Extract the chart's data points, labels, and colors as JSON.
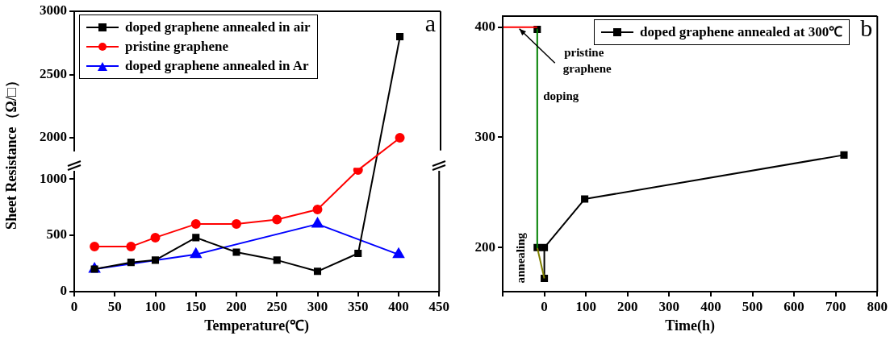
{
  "chart_data": [
    {
      "type": "line",
      "annotations": [
        "a"
      ],
      "xlim": [
        0,
        450
      ],
      "xticks": [
        0,
        50,
        100,
        150,
        200,
        250,
        300,
        350,
        400,
        450
      ],
      "ylim": [
        1900,
        3000
      ],
      "yticks": [
        2000,
        2500,
        3000
      ],
      "tick_labels": "y",
      "grid": false,
      "legend": "top left",
      "series": [
        {
          "name": "doped graphene annealed in air",
          "color": "#000000",
          "marker": "square",
          "x": [
            400
          ],
          "values": [
            2800
          ]
        },
        {
          "name": "pristine graphene",
          "color": "#ff0000",
          "marker": "circle",
          "x": [
            400
          ],
          "values": [
            2000
          ]
        },
        {
          "name": "doped graphene annealed in Ar",
          "color": "#0000ff",
          "marker": "triangle"
        }
      ]
    },
    {
      "type": "line",
      "xlabel": "Temperature(℃)",
      "ylabel": "Sheet Resistance（Ω/□）",
      "xlim": [
        0,
        450
      ],
      "xticks": [
        0,
        50,
        100,
        150,
        200,
        250,
        300,
        350,
        400,
        450
      ],
      "ylim": [
        0,
        1100
      ],
      "yticks": [
        0,
        500,
        1000
      ],
      "grid": false,
      "series": [
        {
          "color": "#000000",
          "marker": "square",
          "x": [
            25,
            70,
            100,
            150,
            200,
            250,
            300,
            350
          ],
          "values": [
            200,
            260,
            280,
            480,
            350,
            280,
            180,
            340
          ]
        },
        {
          "color": "#ff0000",
          "marker": "circle",
          "x": [
            25,
            70,
            100,
            150,
            200,
            250,
            300,
            350
          ],
          "values": [
            400,
            400,
            480,
            600,
            600,
            640,
            730,
            1080
          ]
        },
        {
          "color": "#0000ff",
          "marker": "triangle",
          "x": [
            25,
            150,
            300,
            400
          ],
          "values": [
            200,
            330,
            600,
            330
          ]
        }
      ]
    },
    {
      "type": "line",
      "xlabel": "Time(h)",
      "annotations": [
        {
          "text": "pristine graphene",
          "x": -60,
          "y": 400
        },
        "doping",
        "annealing",
        "b"
      ],
      "xlim": [
        -100,
        800
      ],
      "xticks": [
        {
          "value": -100,
          "label": null
        },
        0,
        100,
        200,
        300,
        400,
        500,
        600,
        700,
        800
      ],
      "ylim": [
        160,
        410
      ],
      "yticks": [
        200,
        300,
        400
      ],
      "grid": false,
      "legend": "top right",
      "series": [
        {
          "color": "#ff0000",
          "marker": "none",
          "x": [
            -100,
            -17
          ],
          "values": [
            400,
            400
          ]
        },
        {
          "color": "#008000",
          "marker": "none",
          "x": [
            -17,
            -17
          ],
          "values": [
            398,
            200
          ]
        },
        {
          "color": "#808000",
          "marker": "none",
          "x": [
            -17,
            0
          ],
          "values": [
            200,
            172
          ]
        },
        {
          "type": "scatter",
          "color": "#000000",
          "marker": "square",
          "x": [
            -17,
            -17
          ],
          "values": [
            398,
            200
          ]
        },
        {
          "name": "doped graphene annealed at 300℃",
          "color": "#000000",
          "marker": "square",
          "x": [
            0,
            0,
            97,
            720
          ],
          "values": [
            172,
            200,
            244,
            284
          ]
        }
      ]
    }
  ]
}
